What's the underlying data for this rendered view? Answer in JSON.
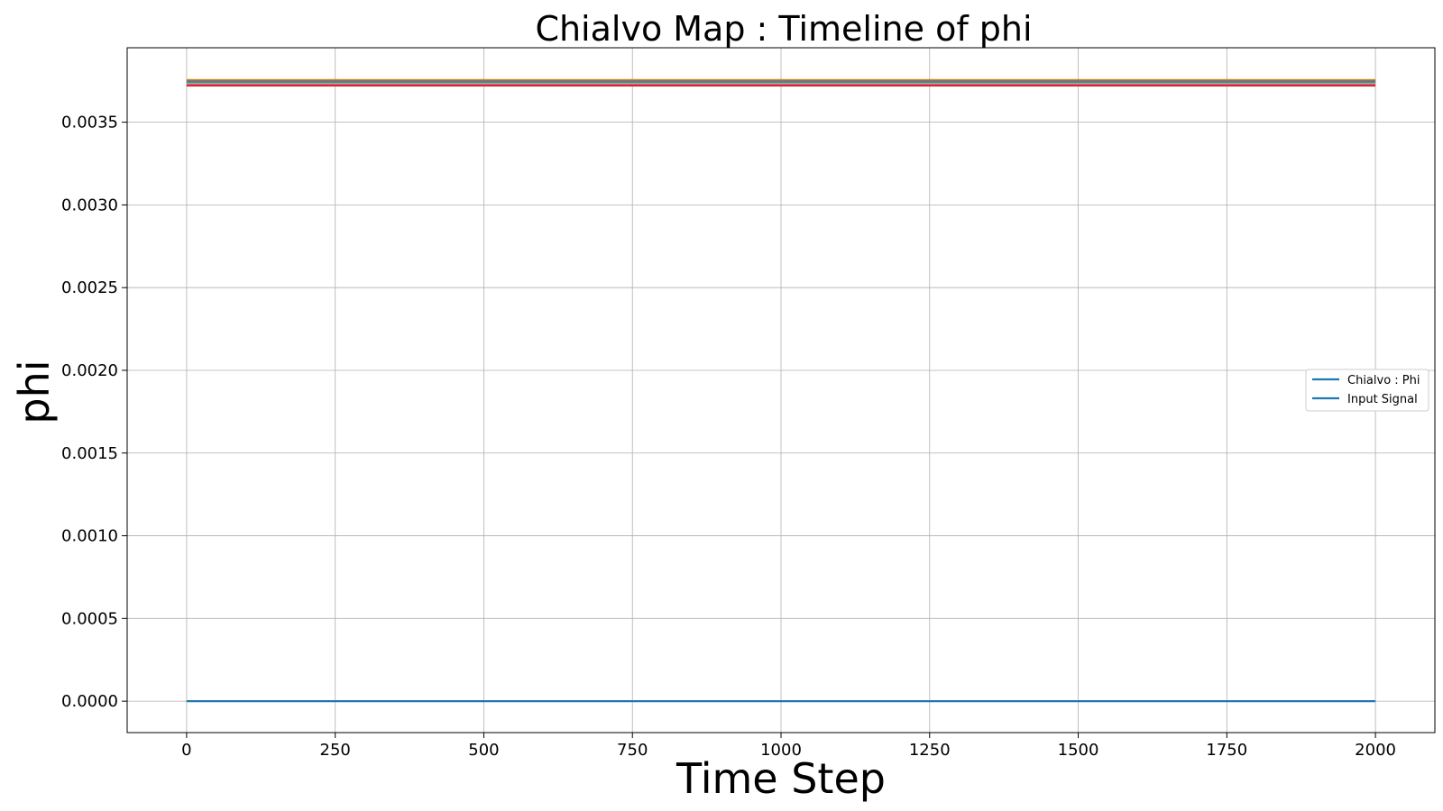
{
  "chart_data": {
    "type": "line",
    "title": "Chialvo Map : Timeline of phi",
    "xlabel": "Time Step",
    "ylabel": "phi",
    "xlim": [
      -100,
      2100
    ],
    "ylim": [
      -0.00019,
      0.00395
    ],
    "xticks": [
      0,
      250,
      500,
      750,
      1000,
      1250,
      1500,
      1750,
      2000
    ],
    "xtick_labels": [
      "0",
      "250",
      "500",
      "750",
      "1000",
      "1250",
      "1500",
      "1750",
      "2000"
    ],
    "yticks": [
      0.0,
      0.0005,
      0.001,
      0.0015,
      0.002,
      0.0025,
      0.003,
      0.0035
    ],
    "ytick_labels": [
      "0.0000",
      "0.0005",
      "0.0010",
      "0.0015",
      "0.0020",
      "0.0025",
      "0.0030",
      "0.0035"
    ],
    "grid": true,
    "legend_position": "center-right",
    "legend": [
      {
        "name": "Chialvo : Phi",
        "color": "#1f77b4"
      },
      {
        "name": "Input Signal",
        "color": "#1f77b4"
      }
    ],
    "series": [
      {
        "name": "Chialvo : Phi",
        "color": "#1f77b4",
        "x": [
          0,
          2000
        ],
        "y": [
          0.0,
          0.0
        ]
      },
      {
        "color": "#ff7f0e",
        "x": [
          0,
          2000
        ],
        "y": [
          0.003755,
          0.003755
        ]
      },
      {
        "color": "#2ca02c",
        "x": [
          0,
          2000
        ],
        "y": [
          0.00375,
          0.00375
        ]
      },
      {
        "color": "#9467bd",
        "x": [
          0,
          2000
        ],
        "y": [
          0.003745,
          0.003745
        ]
      },
      {
        "color": "#8c564b",
        "x": [
          0,
          2000
        ],
        "y": [
          0.00374,
          0.00374
        ]
      },
      {
        "color": "#17becf",
        "x": [
          0,
          2000
        ],
        "y": [
          0.003735,
          0.003735
        ]
      },
      {
        "color": "#bcbd22",
        "x": [
          0,
          2000
        ],
        "y": [
          0.00373,
          0.00373
        ]
      },
      {
        "color": "#e377c2",
        "x": [
          0,
          2000
        ],
        "y": [
          0.003728,
          0.003728
        ]
      },
      {
        "color": "#d62728",
        "x": [
          0,
          2000
        ],
        "y": [
          0.003722,
          0.003722
        ]
      }
    ]
  }
}
